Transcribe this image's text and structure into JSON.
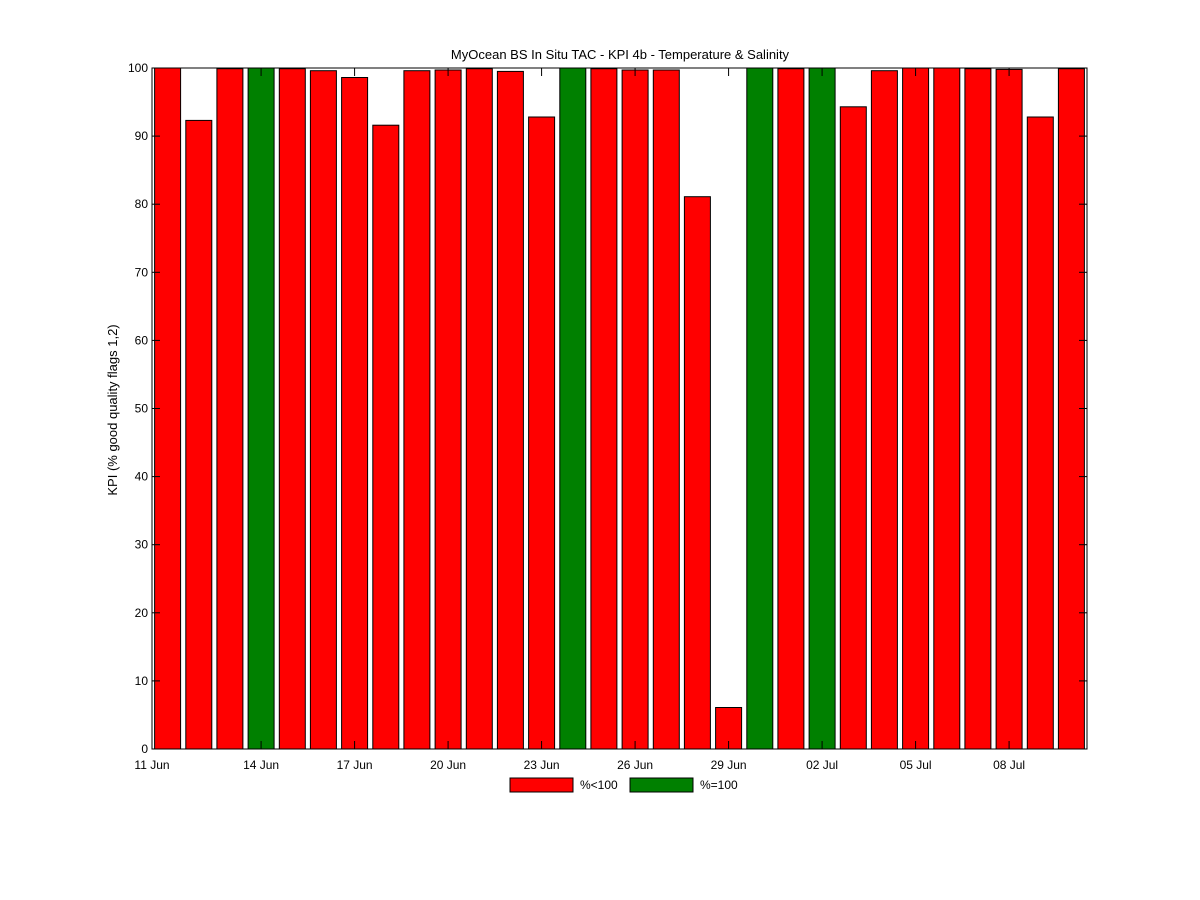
{
  "chart_data": {
    "type": "bar",
    "title": "MyOcean  BS In Situ TAC - KPI 4b - Temperature & Salinity",
    "xlabel": "",
    "ylabel": "KPI (% good quality flags 1,2)",
    "x": [
      "11 Jun",
      "12 Jun",
      "13 Jun",
      "14 Jun",
      "15 Jun",
      "16 Jun",
      "17 Jun",
      "18 Jun",
      "19 Jun",
      "20 Jun",
      "21 Jun",
      "22 Jun",
      "23 Jun",
      "24 Jun",
      "25 Jun",
      "26 Jun",
      "27 Jun",
      "28 Jun",
      "29 Jun",
      "30 Jun",
      "01 Jul",
      "02 Jul",
      "03 Jul",
      "04 Jul",
      "05 Jul",
      "06 Jul",
      "07 Jul",
      "08 Jul",
      "09 Jul",
      "10 Jul"
    ],
    "values": [
      100,
      92.3,
      99.9,
      100,
      99.9,
      99.6,
      98.6,
      91.6,
      99.6,
      99.7,
      99.9,
      99.5,
      92.8,
      100,
      99.9,
      99.7,
      99.7,
      81.1,
      6.1,
      100,
      99.9,
      100,
      94.3,
      99.6,
      100,
      100,
      99.9,
      99.8,
      92.8,
      99.9
    ],
    "category_series": [
      "%<100",
      "%<100",
      "%<100",
      "%=100",
      "%<100",
      "%<100",
      "%<100",
      "%<100",
      "%<100",
      "%<100",
      "%<100",
      "%<100",
      "%<100",
      "%=100",
      "%<100",
      "%<100",
      "%<100",
      "%<100",
      "%<100",
      "%=100",
      "%<100",
      "%=100",
      "%<100",
      "%<100",
      "%<100",
      "%<100",
      "%<100",
      "%<100",
      "%<100",
      "%<100"
    ],
    "tick_labels": [
      {
        "index": 0,
        "label": "11 Jun"
      },
      {
        "index": 3,
        "label": "14 Jun"
      },
      {
        "index": 6,
        "label": "17 Jun"
      },
      {
        "index": 9,
        "label": "20 Jun"
      },
      {
        "index": 12,
        "label": "23 Jun"
      },
      {
        "index": 15,
        "label": "26 Jun"
      },
      {
        "index": 18,
        "label": "29 Jun"
      },
      {
        "index": 21,
        "label": "02 Jul"
      },
      {
        "index": 24,
        "label": "05 Jul"
      },
      {
        "index": 27,
        "label": "08 Jul"
      }
    ],
    "ylim": [
      0,
      100
    ],
    "yticks": [
      0,
      10,
      20,
      30,
      40,
      50,
      60,
      70,
      80,
      90,
      100
    ],
    "grid": false,
    "legend": {
      "placement": "bottom-center",
      "entries": [
        {
          "name": "%<100",
          "color": "#ff0000"
        },
        {
          "name": "%=100",
          "color": "#008000"
        }
      ]
    },
    "colors": {
      "%<100": "#ff0000",
      "%=100": "#008000"
    }
  }
}
